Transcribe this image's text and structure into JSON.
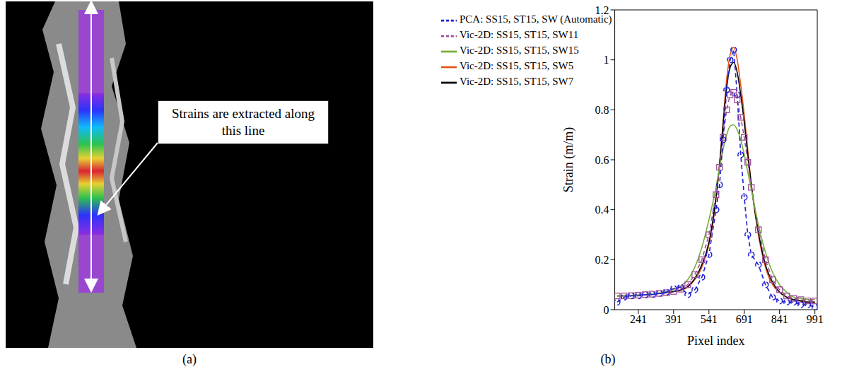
{
  "image_panel": {
    "label": "(a)",
    "annotation": "Strains are extracted along this line"
  },
  "chart_data": {
    "type": "line",
    "label": "(b)",
    "x_label": "Pixel index",
    "y_label": "Strain (m/m)",
    "xlim": [
      141,
      1001
    ],
    "xticks": [
      241,
      391,
      541,
      691,
      841,
      991
    ],
    "ylim": [
      0,
      1.2
    ],
    "yticks": [
      0,
      0.2,
      0.4,
      0.6,
      0.8,
      1,
      1.2
    ],
    "grid": false,
    "legend": "upper left",
    "x": [
      151,
      181,
      211,
      241,
      271,
      301,
      331,
      361,
      391,
      421,
      451,
      481,
      511,
      541,
      571,
      586,
      601,
      616,
      631,
      646,
      661,
      676,
      691,
      706,
      721,
      751,
      781,
      811,
      841,
      871,
      901,
      931,
      961,
      991
    ],
    "series": [
      {
        "name": "Vic-2D: SS15, ST15, SW5",
        "color": "#e2571e",
        "line_style": "solid",
        "marker": "none",
        "values": [
          0.055,
          0.055,
          0.056,
          0.058,
          0.06,
          0.062,
          0.065,
          0.068,
          0.072,
          0.078,
          0.09,
          0.12,
          0.17,
          0.26,
          0.44,
          0.58,
          0.75,
          0.92,
          1.02,
          1.05,
          1.0,
          0.9,
          0.78,
          0.64,
          0.5,
          0.3,
          0.17,
          0.1,
          0.07,
          0.05,
          0.04,
          0.035,
          0.03,
          0.03
        ]
      },
      {
        "name": "Vic-2D: SS15, ST15, SW7",
        "color": "#000000",
        "line_style": "solid",
        "marker": "none",
        "values": [
          0.055,
          0.055,
          0.056,
          0.058,
          0.06,
          0.062,
          0.065,
          0.068,
          0.072,
          0.079,
          0.092,
          0.125,
          0.18,
          0.27,
          0.45,
          0.58,
          0.74,
          0.89,
          0.97,
          0.99,
          0.95,
          0.86,
          0.75,
          0.62,
          0.5,
          0.31,
          0.18,
          0.11,
          0.07,
          0.05,
          0.04,
          0.035,
          0.03,
          0.03
        ]
      },
      {
        "name": "Vic-2D: SS15, ST15, SW11",
        "color": "#9e4f9a",
        "line_style": "dashed",
        "marker": "square",
        "values": [
          0.055,
          0.055,
          0.056,
          0.058,
          0.06,
          0.062,
          0.065,
          0.068,
          0.073,
          0.082,
          0.1,
          0.14,
          0.2,
          0.3,
          0.46,
          0.57,
          0.69,
          0.8,
          0.86,
          0.87,
          0.84,
          0.77,
          0.69,
          0.59,
          0.49,
          0.32,
          0.2,
          0.12,
          0.08,
          0.055,
          0.045,
          0.04,
          0.035,
          0.035
        ]
      },
      {
        "name": "Vic-2D: SS15, ST15, SW15",
        "color": "#77b03a",
        "line_style": "solid",
        "marker": "none",
        "values": [
          0.055,
          0.055,
          0.056,
          0.058,
          0.06,
          0.063,
          0.067,
          0.072,
          0.08,
          0.095,
          0.12,
          0.17,
          0.25,
          0.36,
          0.49,
          0.57,
          0.64,
          0.7,
          0.735,
          0.74,
          0.72,
          0.68,
          0.62,
          0.55,
          0.48,
          0.34,
          0.23,
          0.15,
          0.1,
          0.07,
          0.05,
          0.045,
          0.04,
          0.04
        ]
      },
      {
        "name": "PCA: SS15, ST15, SW (Automatic)",
        "color": "#1f1fd6",
        "line_style": "dashed",
        "marker": "circle",
        "values": [
          0.03,
          0.05,
          0.055,
          0.055,
          0.06,
          0.06,
          0.065,
          0.07,
          0.085,
          0.09,
          0.06,
          0.08,
          0.13,
          0.22,
          0.4,
          0.5,
          0.68,
          0.88,
          1.0,
          1.04,
          0.86,
          0.62,
          0.45,
          0.3,
          0.22,
          0.18,
          0.1,
          0.05,
          0.035,
          0.03,
          0.03,
          0.02,
          0.02,
          0.01
        ]
      }
    ]
  }
}
